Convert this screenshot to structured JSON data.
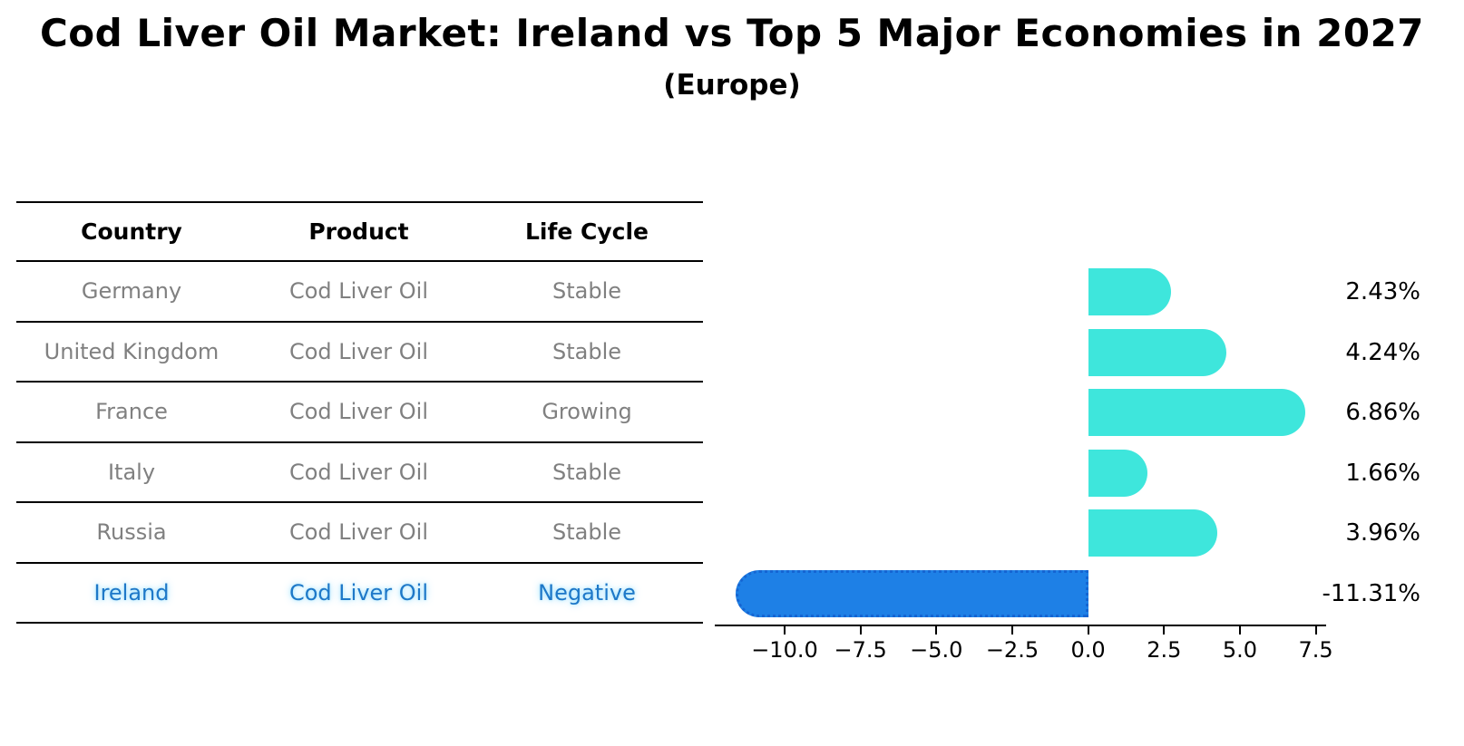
{
  "title": "Cod Liver Oil Market: Ireland vs Top 5 Major Economies in 2027",
  "subtitle": "(Europe)",
  "table": {
    "headers": [
      "Country",
      "Product",
      "Life Cycle"
    ],
    "rows": [
      {
        "country": "Germany",
        "product": "Cod Liver Oil",
        "life_cycle": "Stable",
        "highlighted": false
      },
      {
        "country": "United Kingdom",
        "product": "Cod Liver Oil",
        "life_cycle": "Stable",
        "highlighted": false
      },
      {
        "country": "France",
        "product": "Cod Liver Oil",
        "life_cycle": "Growing",
        "highlighted": false
      },
      {
        "country": "Italy",
        "product": "Cod Liver Oil",
        "life_cycle": "Stable",
        "highlighted": false
      },
      {
        "country": "Russia",
        "product": "Cod Liver Oil",
        "life_cycle": "Stable",
        "highlighted": false
      },
      {
        "country": "Ireland",
        "product": "Cod Liver Oil",
        "life_cycle": "Negative",
        "highlighted": true
      }
    ]
  },
  "chart_data": {
    "type": "bar",
    "orientation": "horizontal",
    "title": "Cod Liver Oil Market: Ireland vs Top 5 Major Economies in 2027 (Europe)",
    "categories": [
      "Germany",
      "United Kingdom",
      "France",
      "Italy",
      "Russia",
      "Ireland"
    ],
    "values": [
      2.43,
      4.24,
      6.86,
      1.66,
      3.96,
      -11.31
    ],
    "value_labels": [
      "2.43%",
      "4.24%",
      "6.86%",
      "1.66%",
      "3.96%",
      "-11.31%"
    ],
    "highlight_index": 5,
    "xlim": [
      -12.3,
      7.84
    ],
    "x_ticks": [
      -10.0,
      -7.5,
      -5.0,
      -2.5,
      0.0,
      2.5,
      5.0,
      7.5
    ],
    "x_tick_labels": [
      "−10.0",
      "−7.5",
      "−5.0",
      "−2.5",
      "0.0",
      "2.5",
      "5.0",
      "7.5"
    ],
    "grid": false,
    "legend": false,
    "xlabel": "",
    "ylabel": ""
  },
  "colors": {
    "bar": "#3EE6DC",
    "highlight_bar": "#1E80E6",
    "highlight_border": "#1565D2",
    "table_text": "#808080",
    "highlight_text": "#1E78C8",
    "line": "#000000",
    "background": "#FFFFFF"
  }
}
